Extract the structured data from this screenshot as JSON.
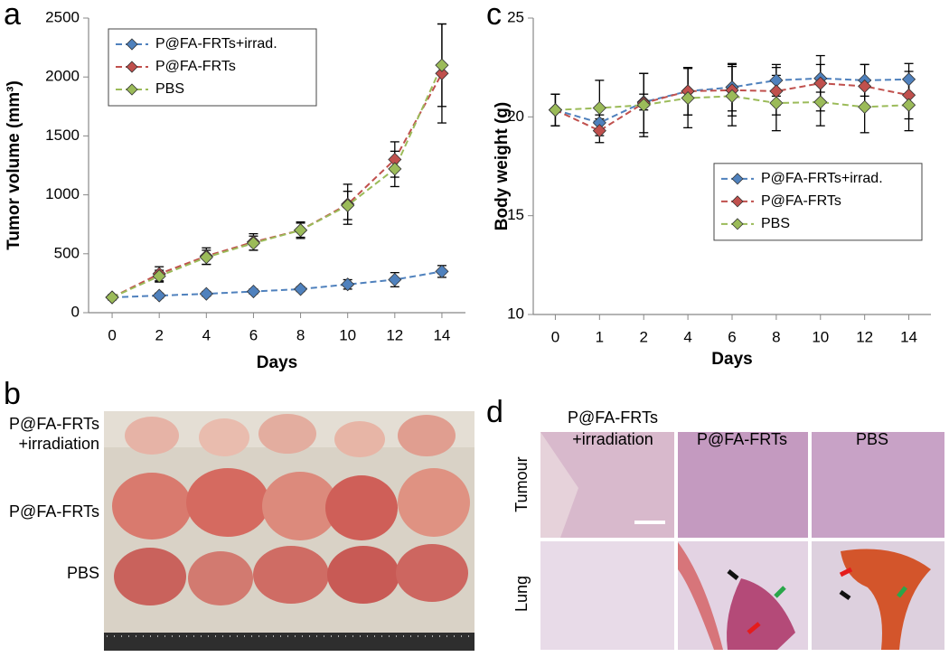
{
  "chart_data": [
    {
      "type": "line",
      "x_label": "Days",
      "y_label": "Tumor volume (mm³)",
      "x": [
        0,
        2,
        4,
        6,
        8,
        10,
        12,
        14
      ],
      "xlim": [
        -1,
        15
      ],
      "xticks": [
        0,
        2,
        4,
        6,
        8,
        10,
        12,
        14
      ],
      "ylim": [
        0,
        2500
      ],
      "yticks": [
        0,
        500,
        1000,
        1500,
        2000,
        2500
      ],
      "legend": "upper left",
      "line_style": "dashed",
      "marker": "diamond",
      "series": [
        {
          "name": "P@FA-FRTs+irrad.",
          "color": "#4f81bd",
          "values": [
            130,
            145,
            160,
            180,
            200,
            240,
            280,
            350
          ],
          "errors": [
            20,
            20,
            20,
            20,
            20,
            40,
            60,
            50
          ]
        },
        {
          "name": "P@FA-FRTs",
          "color": "#c0504d",
          "values": [
            130,
            330,
            480,
            600,
            700,
            920,
            1300,
            2030
          ],
          "errors": [
            20,
            60,
            70,
            70,
            70,
            170,
            150,
            420
          ]
        },
        {
          "name": "PBS",
          "color": "#9bbb59",
          "values": [
            130,
            310,
            470,
            590,
            700,
            910,
            1220,
            2100
          ],
          "errors": [
            20,
            50,
            60,
            60,
            60,
            120,
            150,
            350
          ]
        }
      ]
    },
    {
      "type": "line",
      "x_label": "Days",
      "y_label": "Body weight (g)",
      "categories": [
        "0",
        "1",
        "2",
        "4",
        "6",
        "8",
        "10",
        "12",
        "14"
      ],
      "ylim": [
        10,
        25
      ],
      "yticks": [
        10,
        15,
        20,
        25
      ],
      "legend": "center right",
      "line_style": "dashed",
      "marker": "diamond",
      "series": [
        {
          "name": "P@FA-FRTs+irrad.",
          "color": "#4f81bd",
          "values": [
            20.35,
            19.7,
            20.75,
            21.3,
            21.5,
            21.85,
            21.95,
            21.85,
            21.9
          ],
          "errors": [
            0.8,
            0.4,
            0.4,
            1.2,
            1.2,
            0.8,
            0.7,
            0.8,
            0.8
          ]
        },
        {
          "name": "P@FA-FRTs",
          "color": "#c0504d",
          "values": [
            20.35,
            19.3,
            20.7,
            21.3,
            21.35,
            21.3,
            21.7,
            21.55,
            21.1
          ],
          "errors": [
            0.8,
            0.6,
            1.5,
            1.2,
            1.3,
            1.2,
            1.4,
            1.1,
            1.2
          ]
        },
        {
          "name": "PBS",
          "color": "#9bbb59",
          "values": [
            20.35,
            20.45,
            20.6,
            20.95,
            21.05,
            20.7,
            20.75,
            20.5,
            20.6
          ],
          "errors": [
            0.8,
            1.4,
            1.6,
            1.5,
            1.5,
            1.4,
            1.2,
            1.3,
            1.3
          ]
        }
      ]
    }
  ],
  "panel_labels": [
    "a",
    "b",
    "c",
    "d"
  ],
  "panel_b": {
    "row_labels": [
      [
        "P@FA-FRTs",
        "+irradiation"
      ],
      [
        "P@FA-FRTs"
      ],
      [
        "PBS"
      ]
    ]
  },
  "panel_d": {
    "column_labels": [
      [
        "P@FA-FRTs",
        "+irradiation"
      ],
      [
        "P@FA-FRTs"
      ],
      [
        "PBS"
      ]
    ],
    "row_labels": [
      "Tumour",
      "Lung"
    ]
  }
}
